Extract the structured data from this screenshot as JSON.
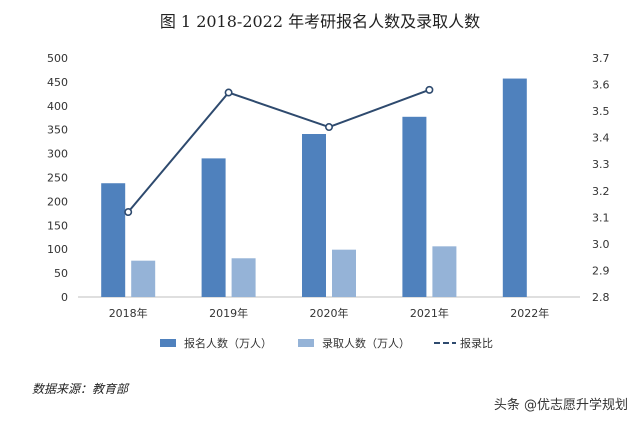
{
  "chart_data": {
    "type": "bar",
    "title": "图 1  2018-2022 年考研报名人数及录取人数",
    "categories": [
      "2018年",
      "2019年",
      "2020年",
      "2021年",
      "2022年"
    ],
    "series": [
      {
        "name": "报名人数（万人）",
        "type": "bar",
        "axis": "left",
        "color": "#4f81bd",
        "values": [
          238,
          290,
          341,
          377,
          457
        ]
      },
      {
        "name": "录取人数（万人）",
        "type": "bar",
        "axis": "left",
        "color": "#95b3d7",
        "values": [
          76,
          81,
          99,
          106,
          null
        ]
      },
      {
        "name": "报录比",
        "type": "line",
        "axis": "right",
        "color": "#2e4a6e",
        "values": [
          3.12,
          3.57,
          3.44,
          3.58,
          null
        ]
      }
    ],
    "ylim_left": [
      0,
      500
    ],
    "yticks_left": [
      "0",
      "50",
      "100",
      "150",
      "200",
      "250",
      "300",
      "350",
      "400",
      "450",
      "500"
    ],
    "ylim_right": [
      2.8,
      3.7
    ],
    "yticks_right": [
      "2.8",
      "2.9",
      "3.0",
      "3.1",
      "3.2",
      "3.3",
      "3.4",
      "3.5",
      "3.6",
      "3.7"
    ],
    "legend_position": "bottom",
    "grid": false
  },
  "source": "数据来源：教育部",
  "watermark": "头条 @优志愿升学规划"
}
